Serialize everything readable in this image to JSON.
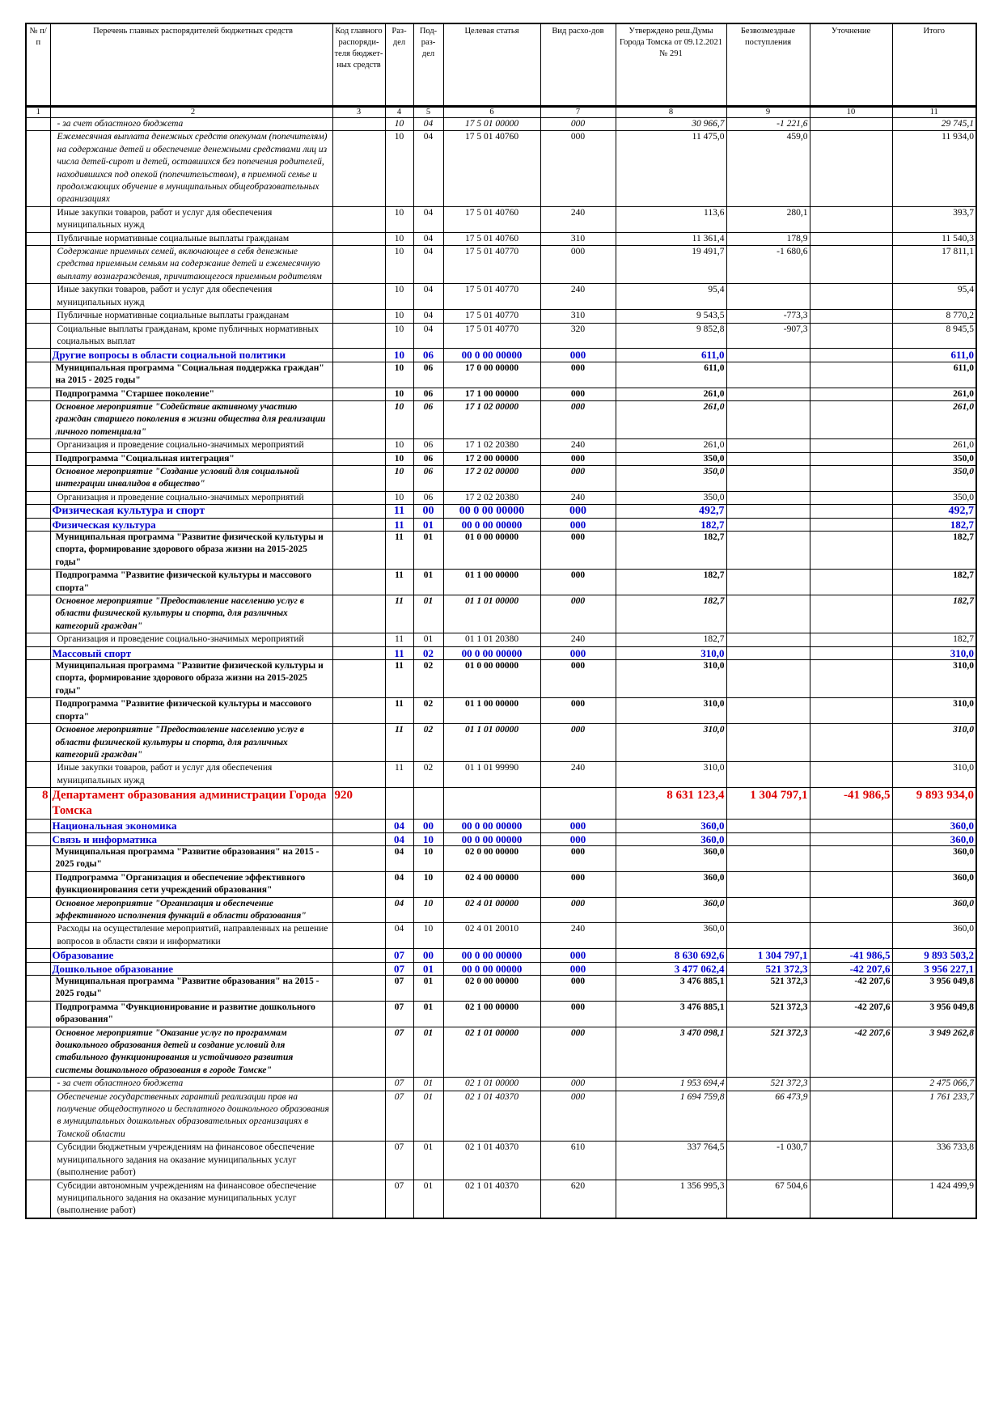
{
  "table": {
    "header": [
      "№ п/п",
      "Перечень главных распорядителей бюджетных средств",
      "Код главного распоряди-теля бюджет-ных средств",
      "Раз-дел",
      "Под-раз-дел",
      "Целевая статья",
      "Вид расхо-дов",
      "Утверждено реш.Думы Города Томска от 09.12.2021 № 291",
      "Безвозмездные поступления",
      "Уточнение",
      "Итого"
    ],
    "numbers": [
      "1",
      "2",
      "3",
      "4",
      "5",
      "6",
      "7",
      "8",
      "9",
      "10",
      "11"
    ],
    "rows": [
      {
        "style": "italic",
        "cells": [
          null,
          "- за счет областного бюджета",
          null,
          "10",
          "04",
          "17 5 01 00000",
          "000",
          "30 966,7",
          "-1 221,6",
          null,
          "29 745,1"
        ]
      },
      {
        "style": "italic-name",
        "cells": [
          null,
          "Ежемесячная выплата денежных средств опекунам (попечителям) на содержание детей и обеспечение денежными средствами лиц из числа детей-сирот и детей, оставшихся без попечения родителей, находившихся под опекой (попечительством), в приемной семье и продолжающих обучение в муниципальных общеобразовательных организациях",
          null,
          "10",
          "04",
          "17 5 01 40760",
          "000",
          "11 475,0",
          "459,0",
          null,
          "11 934,0"
        ]
      },
      {
        "style": "normal",
        "cells": [
          null,
          "Иные закупки товаров, работ и услуг для обеспечения муниципальных нужд",
          null,
          "10",
          "04",
          "17 5 01 40760",
          "240",
          "113,6",
          "280,1",
          null,
          "393,7"
        ]
      },
      {
        "style": "normal",
        "cells": [
          null,
          "Публичные нормативные социальные выплаты гражданам",
          null,
          "10",
          "04",
          "17 5 01 40760",
          "310",
          "11 361,4",
          "178,9",
          null,
          "11 540,3"
        ]
      },
      {
        "style": "italic-name",
        "cells": [
          null,
          "Содержание приемных семей, включающее в себя денежные средства приемным семьям на содержание детей и ежемесячную выплату вознаграждения, причитающегося приемным родителям",
          null,
          "10",
          "04",
          "17 5 01 40770",
          "000",
          "19 491,7",
          "-1 680,6",
          null,
          "17 811,1"
        ]
      },
      {
        "style": "normal",
        "cells": [
          null,
          "Иные закупки товаров, работ и услуг для обеспечения муниципальных нужд",
          null,
          "10",
          "04",
          "17 5 01 40770",
          "240",
          "95,4",
          null,
          null,
          "95,4"
        ]
      },
      {
        "style": "normal",
        "cells": [
          null,
          "Публичные нормативные социальные выплаты гражданам",
          null,
          "10",
          "04",
          "17 5 01 40770",
          "310",
          "9 543,5",
          "-773,3",
          null,
          "8 770,2"
        ]
      },
      {
        "style": "normal",
        "cells": [
          null,
          "Социальные выплаты гражданам, кроме публичных нормативных социальных выплат",
          null,
          "10",
          "04",
          "17 5 01 40770",
          "320",
          "9 852,8",
          "-907,3",
          null,
          "8 945,5"
        ]
      },
      {
        "style": "section",
        "cells": [
          null,
          "Другие вопросы в области социальной политики",
          null,
          "10",
          "06",
          "00 0 00 00000",
          "000",
          "611,0",
          null,
          null,
          "611,0"
        ]
      },
      {
        "style": "bold",
        "cells": [
          null,
          "Муниципальная программа \"Социальная поддержка граждан\" на 2015 - 2025 годы\"",
          null,
          "10",
          "06",
          "17 0 00 00000",
          "000",
          "611,0",
          null,
          null,
          "611,0"
        ]
      },
      {
        "style": "bold",
        "cells": [
          null,
          "Подпрограмма \"Старшее поколение\"",
          null,
          "10",
          "06",
          "17 1 00 00000",
          "000",
          "261,0",
          null,
          null,
          "261,0"
        ]
      },
      {
        "style": "bold-italic",
        "cells": [
          null,
          "Основное мероприятие \"Содействие активному участию граждан старшего поколения в жизни общества для реализации личного потенциала\"",
          null,
          "10",
          "06",
          "17 1 02 00000",
          "000",
          "261,0",
          null,
          null,
          "261,0"
        ]
      },
      {
        "style": "normal",
        "cells": [
          null,
          "Организация и проведение социально-значимых мероприятий",
          null,
          "10",
          "06",
          "17 1 02 20380",
          "240",
          "261,0",
          null,
          null,
          "261,0"
        ]
      },
      {
        "style": "bold",
        "cells": [
          null,
          "Подпрограмма \"Социальная интеграция\"",
          null,
          "10",
          "06",
          "17 2 00 00000",
          "000",
          "350,0",
          null,
          null,
          "350,0"
        ]
      },
      {
        "style": "bold-italic",
        "cells": [
          null,
          "Основное мероприятие \"Создание условий для социальной интеграции инвалидов в общество\"",
          null,
          "10",
          "06",
          "17 2 02 00000",
          "000",
          "350,0",
          null,
          null,
          "350,0"
        ]
      },
      {
        "style": "normal",
        "cells": [
          null,
          "Организация и проведение социально-значимых мероприятий",
          null,
          "10",
          "06",
          "17 2 02 20380",
          "240",
          "350,0",
          null,
          null,
          "350,0"
        ]
      },
      {
        "style": "section-large",
        "cells": [
          null,
          "Физическая культура и спорт",
          null,
          "11",
          "00",
          "00 0 00 00000",
          "000",
          "492,7",
          null,
          null,
          "492,7"
        ]
      },
      {
        "style": "section",
        "cells": [
          null,
          "Физическая культура",
          null,
          "11",
          "01",
          "00 0 00 00000",
          "000",
          "182,7",
          null,
          null,
          "182,7"
        ]
      },
      {
        "style": "bold",
        "cells": [
          null,
          "Муниципальная программа \"Развитие физической культуры и спорта, формирование здорового образа жизни на 2015-2025 годы\"",
          null,
          "11",
          "01",
          "01 0 00 00000",
          "000",
          "182,7",
          null,
          null,
          "182,7"
        ]
      },
      {
        "style": "bold",
        "cells": [
          null,
          "Подпрограмма \"Развитие физической культуры и массового спорта\"",
          null,
          "11",
          "01",
          "01 1 00 00000",
          "000",
          "182,7",
          null,
          null,
          "182,7"
        ]
      },
      {
        "style": "bold-italic",
        "cells": [
          null,
          "Основное мероприятие \"Предоставление населению услуг в области физической культуры и спорта, для различных категорий граждан\"",
          null,
          "11",
          "01",
          "01 1 01 00000",
          "000",
          "182,7",
          null,
          null,
          "182,7"
        ]
      },
      {
        "style": "normal",
        "cells": [
          null,
          "Организация и проведение социально-значимых мероприятий",
          null,
          "11",
          "01",
          "01 1 01 20380",
          "240",
          "182,7",
          null,
          null,
          "182,7"
        ]
      },
      {
        "style": "section",
        "cells": [
          null,
          "Массовый спорт",
          null,
          "11",
          "02",
          "00 0 00 00000",
          "000",
          "310,0",
          null,
          null,
          "310,0"
        ]
      },
      {
        "style": "bold",
        "cells": [
          null,
          "Муниципальная программа \"Развитие физической культуры и спорта, формирование здорового образа жизни на 2015-2025 годы\"",
          null,
          "11",
          "02",
          "01 0 00 00000",
          "000",
          "310,0",
          null,
          null,
          "310,0"
        ]
      },
      {
        "style": "bold",
        "cells": [
          null,
          "Подпрограмма \"Развитие физической культуры и массового спорта\"",
          null,
          "11",
          "02",
          "01 1 00 00000",
          "000",
          "310,0",
          null,
          null,
          "310,0"
        ]
      },
      {
        "style": "bold-italic",
        "cells": [
          null,
          "Основное мероприятие \"Предоставление населению услуг в области физической культуры и спорта, для различных категорий граждан\"",
          null,
          "11",
          "02",
          "01 1 01 00000",
          "000",
          "310,0",
          null,
          null,
          "310,0"
        ]
      },
      {
        "style": "normal",
        "cells": [
          null,
          "Иные закупки товаров, работ и услуг для обеспечения муниципальных нужд",
          null,
          "11",
          "02",
          "01 1 01 99990",
          "240",
          "310,0",
          null,
          null,
          "310,0"
        ]
      },
      {
        "style": "department",
        "cells": [
          "8",
          "Департамент образования администрации Города Томска",
          "920",
          null,
          null,
          null,
          null,
          "8 631 123,4",
          "1 304 797,1",
          "-41 986,5",
          "9 893 934,0"
        ]
      },
      {
        "style": "section",
        "cells": [
          null,
          "Национальная экономика",
          null,
          "04",
          "00",
          "00 0 00 00000",
          "000",
          "360,0",
          null,
          null,
          "360,0"
        ]
      },
      {
        "style": "section",
        "cells": [
          null,
          "Связь и информатика",
          null,
          "04",
          "10",
          "00 0 00 00000",
          "000",
          "360,0",
          null,
          null,
          "360,0"
        ]
      },
      {
        "style": "bold",
        "cells": [
          null,
          "Муниципальная программа \"Развитие образования\" на 2015 - 2025 годы\"",
          null,
          "04",
          "10",
          "02 0 00 00000",
          "000",
          "360,0",
          null,
          null,
          "360,0"
        ]
      },
      {
        "style": "bold",
        "cells": [
          null,
          "Подпрограмма \"Организация и обеспечение эффективного функционирования сети учреждений образования\"",
          null,
          "04",
          "10",
          "02 4 00 00000",
          "000",
          "360,0",
          null,
          null,
          "360,0"
        ]
      },
      {
        "style": "bold-italic",
        "cells": [
          null,
          "Основное мероприятие \"Организация и обеспечение эффективного исполнения функций в области образования\"",
          null,
          "04",
          "10",
          "02 4 01 00000",
          "000",
          "360,0",
          null,
          null,
          "360,0"
        ]
      },
      {
        "style": "normal",
        "cells": [
          null,
          "Расходы на осуществление мероприятий, направленных на решение вопросов в области связи и информатики",
          null,
          "04",
          "10",
          "02 4 01 20010",
          "240",
          "360,0",
          null,
          null,
          "360,0"
        ]
      },
      {
        "style": "section",
        "cells": [
          null,
          "Образование",
          null,
          "07",
          "00",
          "00 0 00 00000",
          "000",
          "8 630 692,6",
          "1 304 797,1",
          "-41 986,5",
          "9 893 503,2"
        ]
      },
      {
        "style": "section",
        "cells": [
          null,
          "Дошкольное образование",
          null,
          "07",
          "01",
          "00 0 00 00000",
          "000",
          "3 477 062,4",
          "521 372,3",
          "-42 207,6",
          "3 956 227,1"
        ]
      },
      {
        "style": "bold",
        "cells": [
          null,
          "Муниципальная программа \"Развитие образования\" на 2015 - 2025 годы\"",
          null,
          "07",
          "01",
          "02 0 00 00000",
          "000",
          "3 476 885,1",
          "521 372,3",
          "-42 207,6",
          "3 956 049,8"
        ]
      },
      {
        "style": "bold",
        "cells": [
          null,
          "Подпрограмма \"Функционирование и развитие дошкольного образования\"",
          null,
          "07",
          "01",
          "02 1 00 00000",
          "000",
          "3 476 885,1",
          "521 372,3",
          "-42 207,6",
          "3 956 049,8"
        ]
      },
      {
        "style": "bold-italic",
        "cells": [
          null,
          "Основное мероприятие \"Оказание услуг по программам дошкольного образования детей и создание условий для стабильного функционирования и устойчивого развития системы дошкольного образования в городе Томске\"",
          null,
          "07",
          "01",
          "02 1 01 00000",
          "000",
          "3 470 098,1",
          "521 372,3",
          "-42 207,6",
          "3 949 262,8"
        ]
      },
      {
        "style": "italic",
        "cells": [
          null,
          "- за счет областного бюджета",
          null,
          "07",
          "01",
          "02 1 01 00000",
          "000",
          "1 953 694,4",
          "521 372,3",
          null,
          "2 475 066,7"
        ]
      },
      {
        "style": "italic",
        "cells": [
          null,
          "Обеспечение государственных гарантий реализации прав на получение общедоступного и бесплатного дошкольного образования в муниципальных дошкольных образовательных организациях в Томской области",
          null,
          "07",
          "01",
          "02 1 01 40370",
          "000",
          "1 694 759,8",
          "66 473,9",
          null,
          "1 761 233,7"
        ]
      },
      {
        "style": "normal",
        "cells": [
          null,
          "Субсидии бюджетным учреждениям на финансовое обеспечение муниципального задания на оказание муниципальных услуг (выполнение работ)",
          null,
          "07",
          "01",
          "02 1 01 40370",
          "610",
          "337 764,5",
          "-1 030,7",
          null,
          "336 733,8"
        ]
      },
      {
        "style": "normal",
        "cells": [
          null,
          "Субсидии автономным учреждениям на финансовое обеспечение муниципального задания на оказание муниципальных услуг (выполнение работ)",
          null,
          "07",
          "01",
          "02 1 01 40370",
          "620",
          "1 356 995,3",
          "67 504,6",
          null,
          "1 424 499,9"
        ]
      }
    ]
  }
}
